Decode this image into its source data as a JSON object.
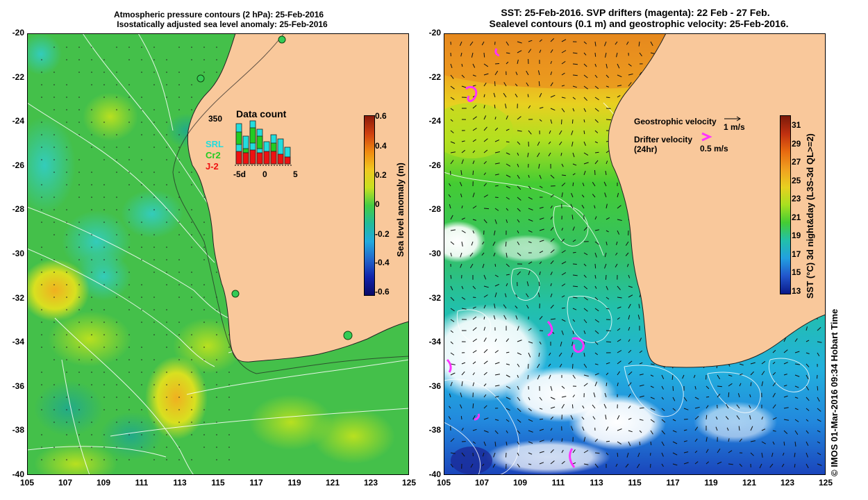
{
  "left_panel": {
    "title_line1": "Atmospheric pressure contours (2 hPa): 25-Feb-2016",
    "title_line2": "Isostatically adjusted sea level anomaly: 25-Feb-2016",
    "y_ticks": [
      "-20",
      "-22",
      "-24",
      "-26",
      "-28",
      "-30",
      "-32",
      "-34",
      "-36",
      "-38",
      "-40"
    ],
    "x_ticks": [
      "105",
      "107",
      "109",
      "111",
      "113",
      "115",
      "117",
      "119",
      "121",
      "123",
      "125"
    ],
    "inset": {
      "title": "Data count",
      "ymax": "350",
      "legend": [
        {
          "label": "SRL",
          "color": "#22dddd"
        },
        {
          "label": "Cr2",
          "color": "#22cc22"
        },
        {
          "label": "J-2",
          "color": "#ee1111"
        }
      ],
      "x_ticks": [
        "-5d",
        "0",
        "5"
      ]
    },
    "colorbar": {
      "label": "Sea level anomaly (m)",
      "ticks": [
        "0.6",
        "0.4",
        "0.2",
        "0",
        "-0.2",
        "-0.4",
        "-0.6"
      ]
    }
  },
  "right_panel": {
    "title_line1": "SST: 25-Feb-2016. SVP drifters (magenta): 22 Feb - 27 Feb.",
    "title_line2": "Sealevel contours (0.1 m) and geostrophic velocity: 25-Feb-2016.",
    "y_ticks": [
      "-20",
      "-22",
      "-24",
      "-26",
      "-28",
      "-30",
      "-32",
      "-34",
      "-36",
      "-38",
      "-40"
    ],
    "x_ticks": [
      "105",
      "107",
      "109",
      "111",
      "113",
      "115",
      "117",
      "119",
      "121",
      "123",
      "125"
    ],
    "legend": {
      "geo_label": "Geostrophic velocity",
      "geo_scale": "1 m/s",
      "drifter_label": "Drifter velocity",
      "drifter_sub": "(24hr)",
      "drifter_scale": "0.5 m/s"
    },
    "colorbar": {
      "label": "SST (°C) 3d night&day (L3S-3d QL>=2)",
      "ticks": [
        "31",
        "29",
        "27",
        "25",
        "23",
        "21",
        "19",
        "17",
        "15",
        "13"
      ]
    }
  },
  "credit": "© IMOS 01-Mar-2016 09:34 Hobart Time",
  "colors": {
    "land": "#f9c89b",
    "sla_mid": "#2ecc40",
    "drifter": "#ff33ff"
  }
}
